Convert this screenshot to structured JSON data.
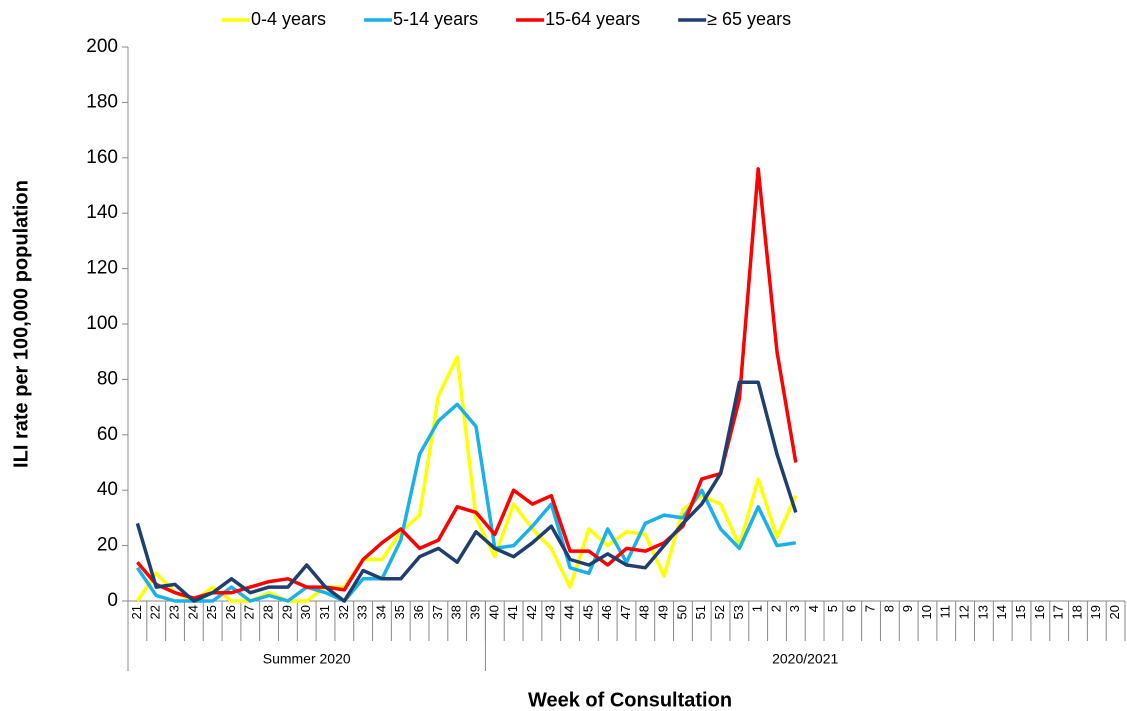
{
  "chart_data": {
    "type": "line",
    "y_label": "ILI rate per 100,000 population",
    "x_label": "Week of Consultation",
    "categories": [
      "21",
      "22",
      "23",
      "24",
      "25",
      "26",
      "27",
      "28",
      "29",
      "30",
      "31",
      "32",
      "33",
      "34",
      "35",
      "36",
      "37",
      "38",
      "39",
      "40",
      "41",
      "42",
      "43",
      "44",
      "45",
      "46",
      "47",
      "48",
      "49",
      "50",
      "51",
      "52",
      "53",
      "1",
      "2",
      "3",
      "4",
      "5",
      "6",
      "7",
      "8",
      "9",
      "10",
      "11",
      "12",
      "13",
      "14",
      "15",
      "16",
      "17",
      "18",
      "19",
      "20"
    ],
    "category_groups": [
      {
        "name": "Summer 2020",
        "count": 19
      },
      {
        "name": "2020/2021",
        "count": 34
      }
    ],
    "ylim": [
      0,
      200
    ],
    "yticks": [
      0,
      20,
      40,
      60,
      80,
      100,
      120,
      140,
      160,
      180,
      200
    ],
    "legend_position": "top",
    "series": [
      {
        "name": "0-4 years",
        "color": "#ffff00",
        "values": [
          0,
          10,
          3,
          0,
          5,
          0,
          0,
          3,
          0,
          0,
          5,
          5,
          15,
          15,
          25,
          31,
          74,
          88,
          30,
          16,
          35,
          26,
          19,
          5,
          26,
          20,
          25,
          24,
          9,
          33,
          38,
          35,
          20,
          44,
          23,
          38,
          null,
          null,
          null,
          null,
          null,
          null,
          null,
          null,
          null,
          null,
          null,
          null,
          null,
          null,
          null,
          null,
          null
        ]
      },
      {
        "name": "5-14 years",
        "color": "#1ab0e8",
        "values": [
          12,
          2,
          0,
          0,
          0,
          5,
          0,
          2,
          0,
          5,
          3,
          0,
          8,
          8,
          22,
          53,
          65,
          71,
          63,
          19,
          20,
          27,
          35,
          12,
          10,
          26,
          14,
          28,
          31,
          30,
          40,
          26,
          19,
          34,
          20,
          21,
          null,
          null,
          null,
          null,
          null,
          null,
          null,
          null,
          null,
          null,
          null,
          null,
          null,
          null,
          null,
          null,
          null
        ]
      },
      {
        "name": "15-64 years",
        "color": "#ff0000",
        "values": [
          14,
          6,
          3,
          1,
          3,
          3,
          5,
          7,
          8,
          5,
          5,
          4,
          15,
          21,
          26,
          19,
          22,
          34,
          32,
          24,
          40,
          35,
          38,
          18,
          18,
          13,
          19,
          18,
          21,
          27,
          44,
          46,
          73,
          156,
          90,
          50,
          null,
          null,
          null,
          null,
          null,
          null,
          null,
          null,
          null,
          null,
          null,
          null,
          null,
          null,
          null,
          null,
          null
        ]
      },
      {
        "name": "≥ 65 years",
        "color": "#1f3f6e",
        "values": [
          28,
          5,
          6,
          0,
          3,
          8,
          3,
          5,
          5,
          13,
          5,
          0,
          11,
          8,
          8,
          16,
          19,
          14,
          25,
          19,
          16,
          21,
          27,
          15,
          13,
          17,
          13,
          12,
          20,
          28,
          35,
          46,
          79,
          79,
          53,
          32,
          null,
          null,
          null,
          null,
          null,
          null,
          null,
          null,
          null,
          null,
          null,
          null,
          null,
          null,
          null,
          null,
          null
        ]
      }
    ]
  }
}
